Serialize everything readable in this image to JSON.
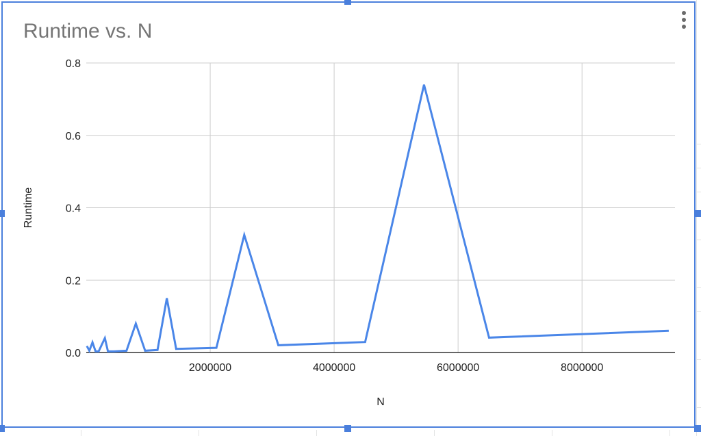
{
  "chart_data": {
    "type": "line",
    "title": "Runtime vs. N",
    "xlabel": "N",
    "ylabel": "Runtime",
    "xlim": [
      0,
      9500000
    ],
    "ylim": [
      0,
      0.8
    ],
    "x_ticks": [
      2000000,
      4000000,
      6000000,
      8000000
    ],
    "x_tick_labels": [
      "2000000",
      "4000000",
      "6000000",
      "8000000"
    ],
    "y_ticks": [
      0,
      0.2,
      0.4,
      0.6,
      0.8
    ],
    "y_tick_labels": [
      "0.0",
      "0.2",
      "0.4",
      "0.6",
      "0.8"
    ],
    "grid": true,
    "legend": "none",
    "series": [
      {
        "color": "#4a86e8",
        "x": [
          10000,
          50000,
          100000,
          150000,
          200000,
          300000,
          350000,
          450000,
          650000,
          800000,
          950000,
          1150000,
          1300000,
          1450000,
          2100000,
          2550000,
          3100000,
          4500000,
          5450000,
          6500000,
          9400000
        ],
        "y": [
          0.018,
          0.005,
          0.028,
          0.003,
          0.003,
          0.04,
          0.003,
          0.003,
          0.005,
          0.08,
          0.005,
          0.007,
          0.15,
          0.01,
          0.013,
          0.325,
          0.02,
          0.029,
          0.74,
          0.041,
          0.06
        ]
      }
    ]
  },
  "ui": {
    "menu_icon": "more-vert-icon",
    "frame_color": "#4a7fdc"
  }
}
